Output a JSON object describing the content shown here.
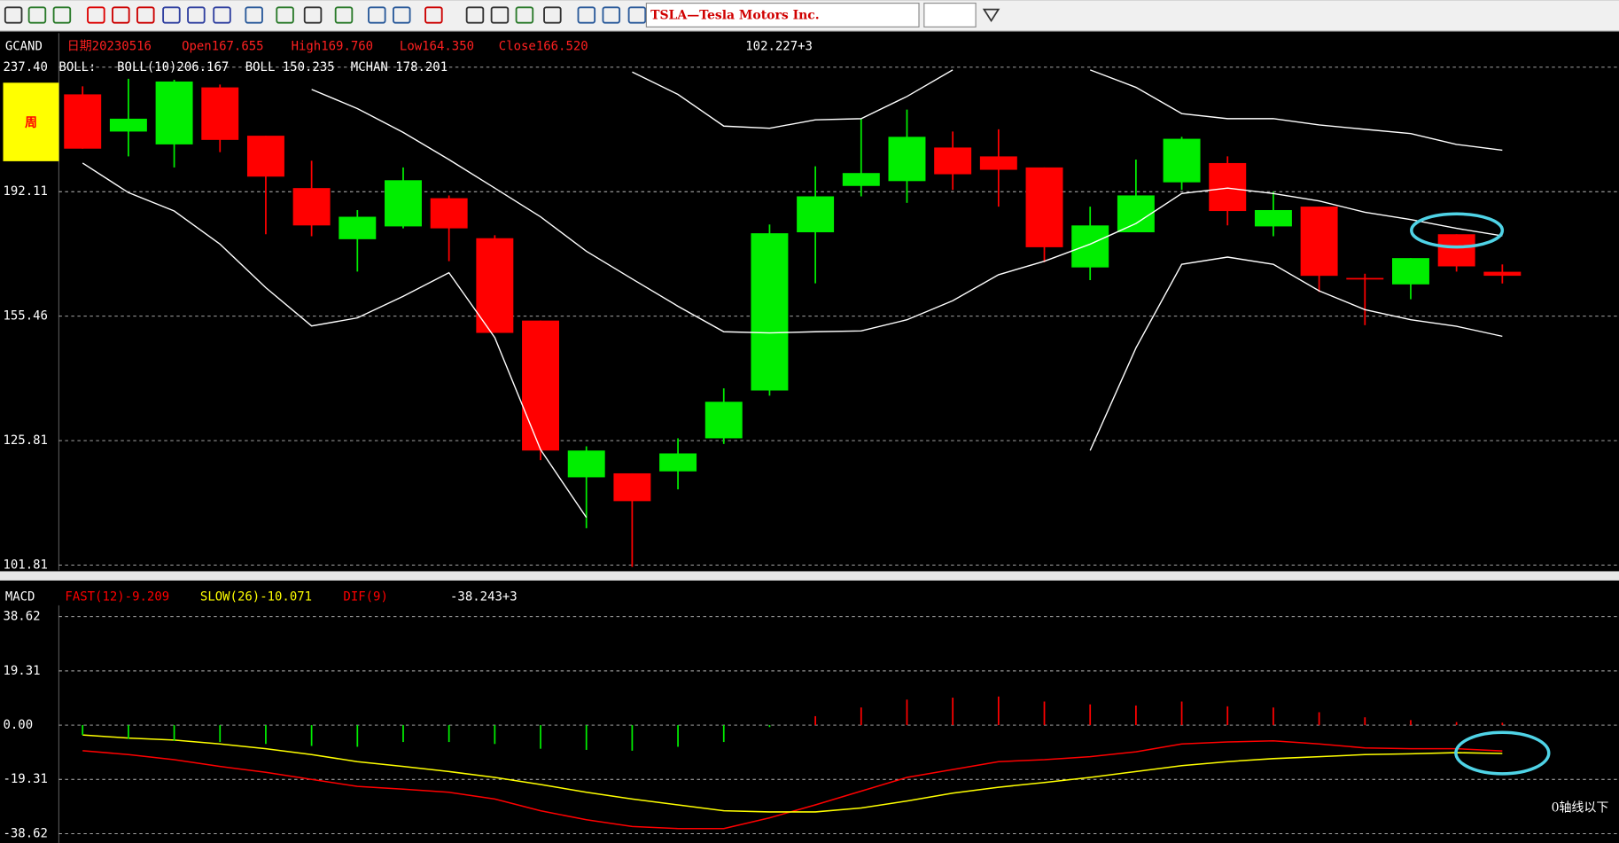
{
  "toolbar": {
    "ticker": "TSLA—Tesla Motors Inc."
  },
  "chart_data": [
    {
      "type": "candlestick",
      "symbol": "GCAND",
      "info": [
        "日期20230516",
        "Open167.655",
        "High169.760",
        "Low164.350",
        "Close166.520"
      ],
      "readout": "102.227+3",
      "indicator_label": "BOLL:",
      "period_label": "周",
      "log_scale": true,
      "grid": true,
      "up_color": "#00ee00",
      "down_color": "#ff0000",
      "ylim": [
        101.81,
        237.4
      ],
      "yticks": [
        101.81,
        125.81,
        155.46,
        192.11,
        {
          "value": 237.4,
          "label": "237.40"
        }
      ],
      "open": [
        226.7,
        212.8,
        208.2,
        229.4,
        211.3,
        193.3,
        177.2,
        181.1,
        190.0,
        177.5,
        154.3,
        118.2,
        119.0,
        119.4,
        126.3,
        137.0,
        179.3,
        194.0,
        195.6,
        207.1,
        204.0,
        200.2,
        168.9,
        179.3,
        195.2,
        201.7,
        181.1,
        187.3,
        165.9,
        164.1,
        178.7,
        167.655
      ],
      "high": [
        229.8,
        232.8,
        232.4,
        230.5,
        211.3,
        202.5,
        186.2,
        200.2,
        190.9,
        178.4,
        154.3,
        124.6,
        119.0,
        126.3,
        137.5,
        181.7,
        200.6,
        217.5,
        220.9,
        212.8,
        213.6,
        200.2,
        187.3,
        202.9,
        210.9,
        204.0,
        192.1,
        187.3,
        167.1,
        171.6,
        178.7,
        169.76
      ],
      "low": [
        206.7,
        204.0,
        200.2,
        205.5,
        178.7,
        178.1,
        167.7,
        180.5,
        170.7,
        151.1,
        121.7,
        108.4,
        101.5,
        115.8,
        125.1,
        135.8,
        164.4,
        190.6,
        188.5,
        192.7,
        187.3,
        170.4,
        165.3,
        179.3,
        192.7,
        181.4,
        178.1,
        162.0,
        153.1,
        160.0,
        167.7,
        164.35
      ],
      "close": [
        206.7,
        217.5,
        231.7,
        209.8,
        197.1,
        181.4,
        184.1,
        195.9,
        180.5,
        151.1,
        123.7,
        123.7,
        113.5,
        123.1,
        134.4,
        179.0,
        190.6,
        198.3,
        210.9,
        197.9,
        199.4,
        174.8,
        181.4,
        190.9,
        210.2,
        185.9,
        186.2,
        166.5,
        165.6,
        171.6,
        169.2,
        166.52
      ],
      "series": [
        {
          "name": "BOLL(10)206.167",
          "color": "#ffffff",
          "values": [
            null,
            null,
            null,
            null,
            null,
            null,
            null,
            null,
            null,
            null,
            null,
            null,
            235.5,
            226.7,
            214.8,
            214.0,
            217.1,
            217.5,
            225.9,
            236.3,
            null,
            null,
            236.3,
            229.4,
            219.4,
            217.5,
            217.5,
            215.2,
            213.6,
            212.1,
            208.2,
            206.167
          ]
        },
        {
          "name": "BOLL 150.235",
          "color": "#ffffff",
          "values": [
            201.7,
            191.8,
            185.9,
            175.7,
            163.2,
            152.9,
            155.0,
            160.8,
            167.4,
            149.9,
            123.9,
            110.4,
            null,
            null,
            null,
            null,
            null,
            null,
            null,
            null,
            null,
            null,
            123.7,
            147.3,
            169.8,
            171.9,
            169.8,
            162.3,
            157.2,
            154.5,
            152.8,
            150.235
          ]
        },
        {
          "name": "MCHAN 178.201",
          "color": "#ffffff",
          "values": [
            null,
            null,
            null,
            null,
            null,
            228.6,
            221.3,
            212.5,
            202.9,
            193.3,
            184.1,
            173.6,
            165.6,
            158.1,
            151.4,
            151.1,
            151.4,
            151.6,
            154.5,
            159.6,
            166.8,
            170.7,
            175.7,
            182.0,
            191.5,
            193.3,
            191.5,
            189.1,
            185.5,
            183.2,
            180.5,
            178.201
          ]
        }
      ]
    },
    {
      "type": "macd",
      "title": "MACD",
      "readout": "-38.243+3",
      "annotation": "0轴线以下",
      "grid": true,
      "ylim": [
        -38.62,
        38.62
      ],
      "yticks": [
        -38.62,
        -19.31,
        {
          "value": 0,
          "label": "0.00"
        },
        19.31,
        38.62
      ],
      "series": [
        {
          "name": "FAST(12)-9.209",
          "color": "#ff0000",
          "values": [
            -9.1,
            -10.5,
            -12.3,
            -14.7,
            -16.8,
            -19.3,
            -21.8,
            -22.8,
            -23.9,
            -26.3,
            -30.5,
            -33.7,
            -36.1,
            -36.8,
            -36.8,
            -33.0,
            -28.4,
            -23.5,
            -18.6,
            -15.8,
            -13.0,
            -12.3,
            -11.2,
            -9.5,
            -6.7,
            -6.0,
            -5.6,
            -6.7,
            -8.1,
            -8.4,
            -8.4,
            -9.209
          ]
        },
        {
          "name": "SLOW(26)-10.071",
          "color": "#ffff00",
          "values": [
            -3.5,
            -4.6,
            -5.3,
            -6.7,
            -8.4,
            -10.5,
            -13.0,
            -14.7,
            -16.5,
            -18.6,
            -21.1,
            -23.9,
            -26.3,
            -28.4,
            -30.5,
            -30.9,
            -30.9,
            -29.5,
            -27.0,
            -24.2,
            -22.1,
            -20.4,
            -18.6,
            -16.5,
            -14.4,
            -13.0,
            -11.9,
            -11.2,
            -10.5,
            -10.2,
            -9.8,
            -10.071
          ]
        },
        {
          "name": "DIF(9)",
          "color": "#ff0000",
          "negative_color": "#00ee00",
          "histogram": true,
          "values": [
            -3.5,
            -4.9,
            -5.6,
            -6.0,
            -6.7,
            -7.4,
            -7.7,
            -6.0,
            -6.0,
            -6.7,
            -8.4,
            -8.8,
            -9.1,
            -7.7,
            -6.0,
            -0.7,
            3.2,
            6.3,
            9.1,
            9.8,
            10.2,
            8.4,
            7.4,
            7.0,
            8.4,
            6.7,
            6.3,
            4.6,
            2.8,
            1.8,
            1.1,
            0.862
          ]
        }
      ]
    }
  ]
}
